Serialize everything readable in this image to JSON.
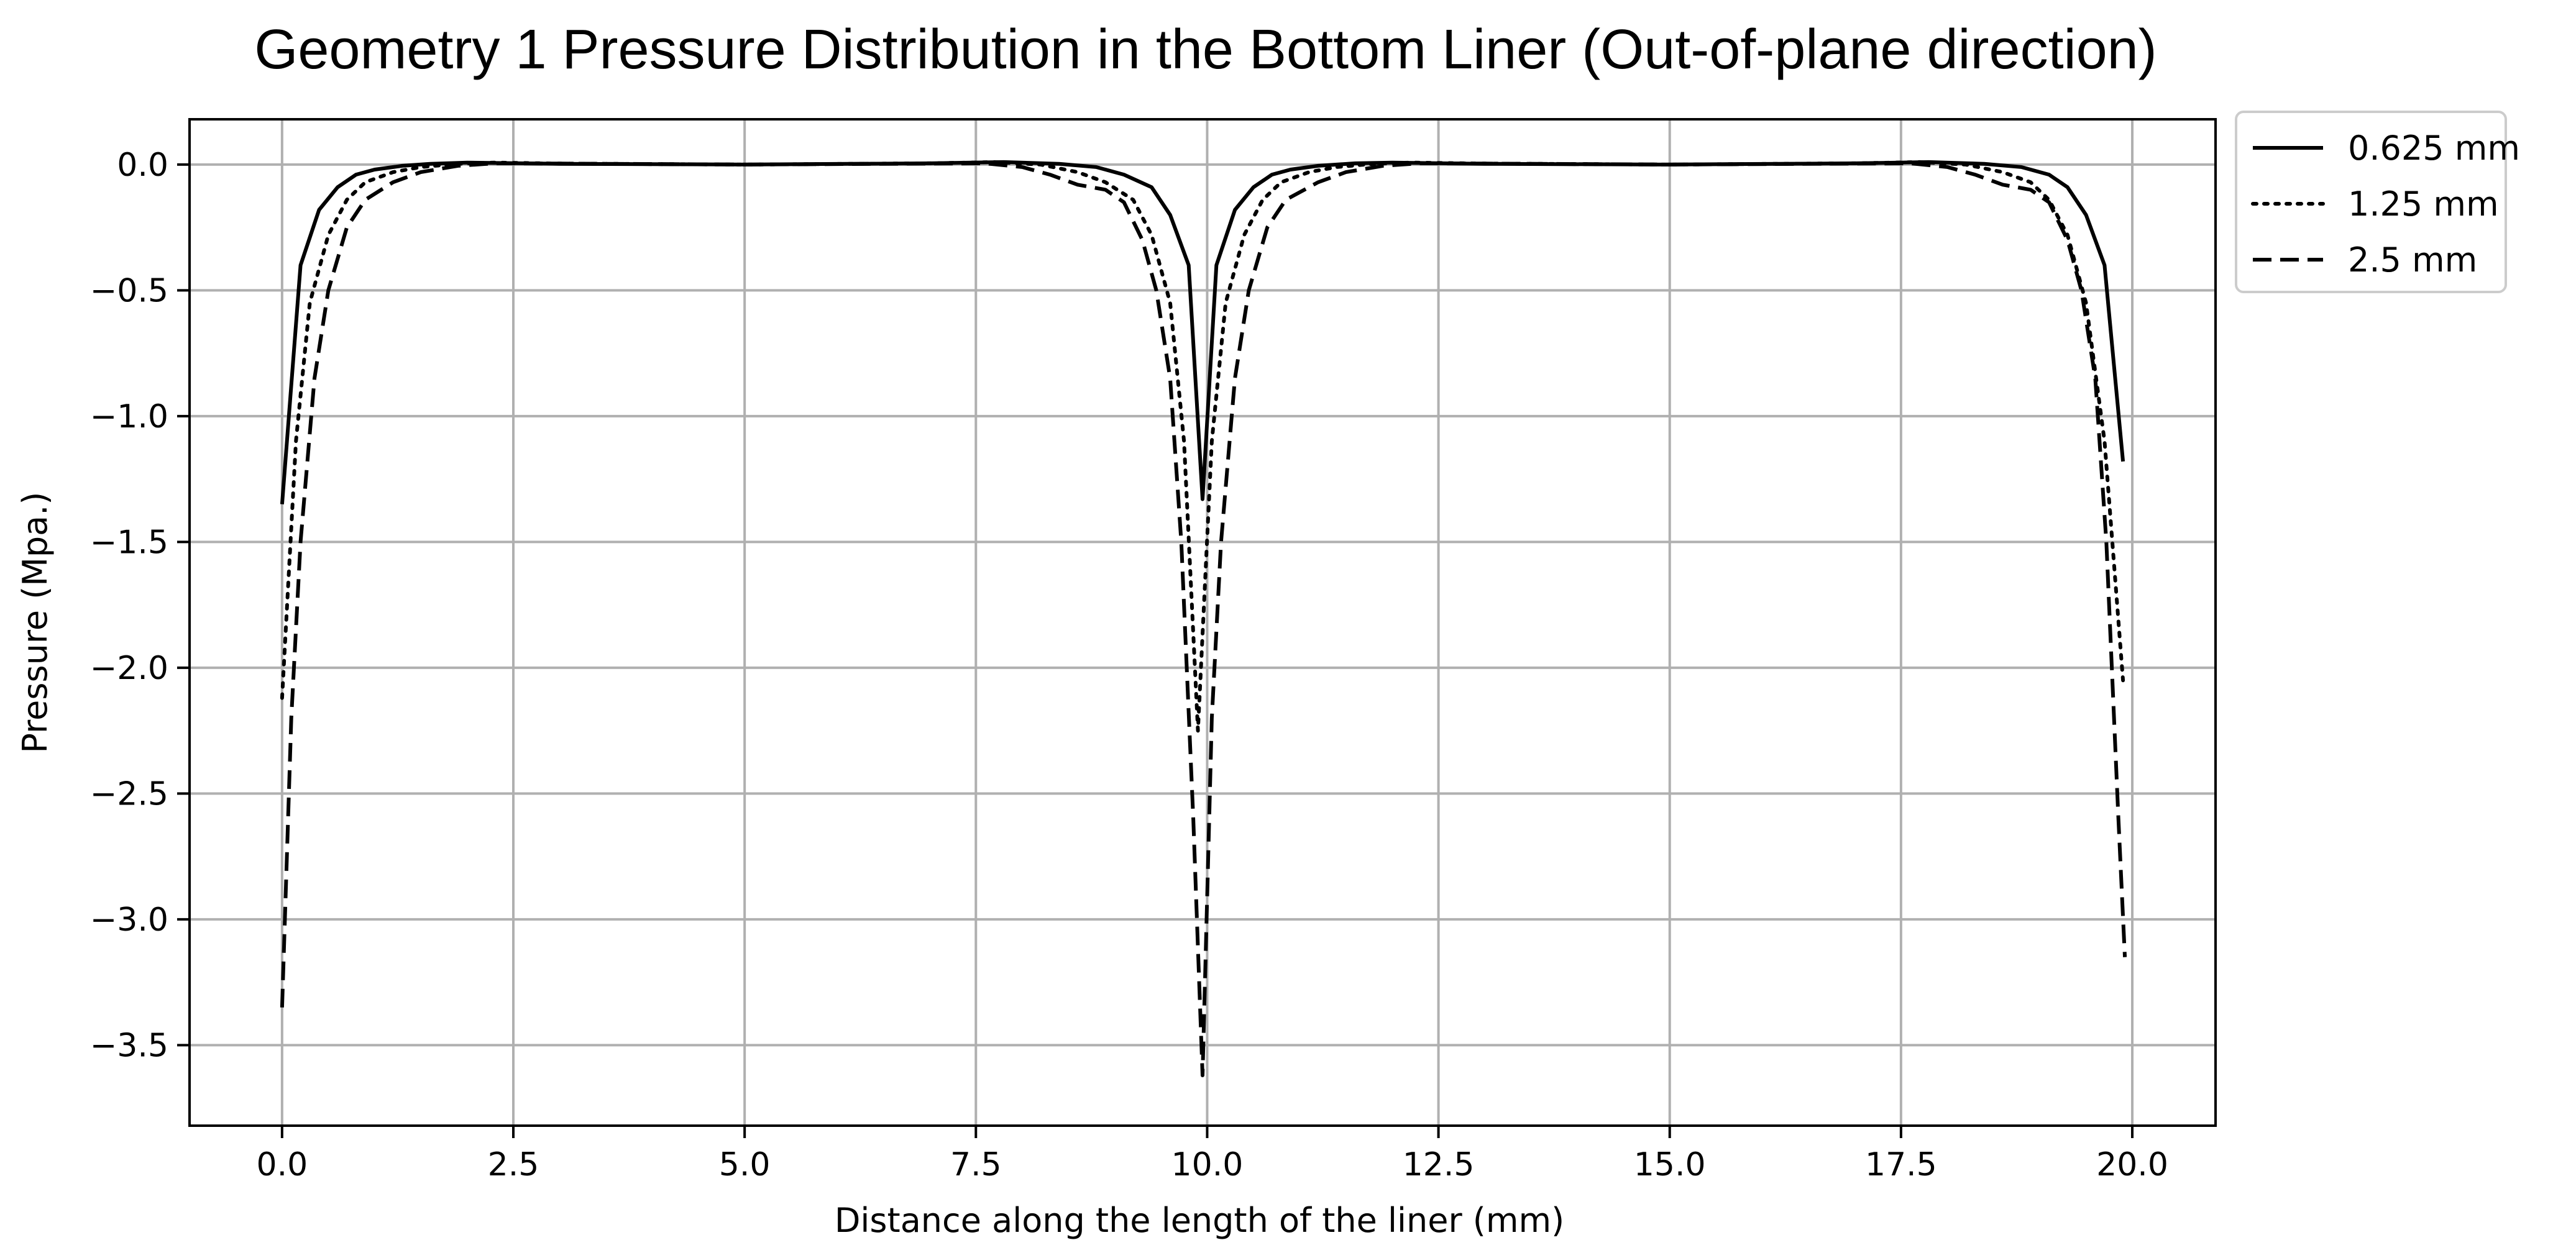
{
  "chart_data": {
    "type": "line",
    "title": "Geometry 1 Pressure Distribution in the Bottom Liner (Out-of-plane direction)",
    "xlabel": "Distance along the length of the liner (mm)",
    "ylabel": "Pressure (Mpa.)",
    "xlim": [
      -1.0,
      20.9
    ],
    "ylim": [
      -3.82,
      0.18
    ],
    "x_ticks": [
      0.0,
      2.5,
      5.0,
      7.5,
      10.0,
      12.5,
      15.0,
      17.5,
      20.0
    ],
    "x_tick_labels": [
      "0.0",
      "2.5",
      "5.0",
      "7.5",
      "10.0",
      "12.5",
      "15.0",
      "17.5",
      "20.0"
    ],
    "y_ticks": [
      0.0,
      -0.5,
      -1.0,
      -1.5,
      -2.0,
      -2.5,
      -3.0,
      -3.5
    ],
    "y_tick_labels": [
      "0.0",
      "−0.5",
      "−1.0",
      "−1.5",
      "−2.0",
      "−2.5",
      "−3.0",
      "−3.5"
    ],
    "grid": true,
    "legend_position": "outside-top-right",
    "series": [
      {
        "name": "0.625 mm",
        "style": "solid",
        "color": "#000000",
        "points": [
          [
            0.0,
            -1.35
          ],
          [
            0.2,
            -0.4
          ],
          [
            0.4,
            -0.18
          ],
          [
            0.6,
            -0.09
          ],
          [
            0.8,
            -0.04
          ],
          [
            1.0,
            -0.02
          ],
          [
            1.3,
            -0.005
          ],
          [
            1.6,
            0.003
          ],
          [
            2.0,
            0.008
          ],
          [
            3.0,
            0.003
          ],
          [
            5.0,
            0.0
          ],
          [
            7.0,
            0.005
          ],
          [
            7.8,
            0.01
          ],
          [
            8.4,
            0.003
          ],
          [
            8.8,
            -0.01
          ],
          [
            9.1,
            -0.04
          ],
          [
            9.4,
            -0.09
          ],
          [
            9.6,
            -0.2
          ],
          [
            9.8,
            -0.4
          ],
          [
            9.95,
            -1.33
          ],
          [
            10.1,
            -0.4
          ],
          [
            10.3,
            -0.18
          ],
          [
            10.5,
            -0.09
          ],
          [
            10.7,
            -0.04
          ],
          [
            10.9,
            -0.02
          ],
          [
            11.2,
            -0.005
          ],
          [
            11.6,
            0.005
          ],
          [
            12.0,
            0.008
          ],
          [
            13.0,
            0.003
          ],
          [
            15.0,
            0.0
          ],
          [
            17.0,
            0.005
          ],
          [
            17.8,
            0.01
          ],
          [
            18.4,
            0.003
          ],
          [
            18.8,
            -0.01
          ],
          [
            19.1,
            -0.04
          ],
          [
            19.3,
            -0.09
          ],
          [
            19.5,
            -0.2
          ],
          [
            19.7,
            -0.4
          ],
          [
            19.9,
            -1.18
          ]
        ]
      },
      {
        "name": "1.25 mm",
        "style": "dotted",
        "color": "#000000",
        "points": [
          [
            0.0,
            -2.12
          ],
          [
            0.15,
            -1.1
          ],
          [
            0.3,
            -0.55
          ],
          [
            0.5,
            -0.28
          ],
          [
            0.7,
            -0.14
          ],
          [
            0.9,
            -0.07
          ],
          [
            1.2,
            -0.03
          ],
          [
            1.5,
            -0.01
          ],
          [
            1.9,
            0.003
          ],
          [
            2.3,
            0.008
          ],
          [
            3.0,
            0.004
          ],
          [
            5.0,
            0.0
          ],
          [
            7.0,
            0.005
          ],
          [
            7.7,
            0.01
          ],
          [
            8.2,
            0.0
          ],
          [
            8.6,
            -0.03
          ],
          [
            8.9,
            -0.07
          ],
          [
            9.2,
            -0.14
          ],
          [
            9.4,
            -0.28
          ],
          [
            9.6,
            -0.55
          ],
          [
            9.75,
            -1.1
          ],
          [
            9.9,
            -2.25
          ],
          [
            10.05,
            -1.1
          ],
          [
            10.2,
            -0.55
          ],
          [
            10.4,
            -0.28
          ],
          [
            10.6,
            -0.14
          ],
          [
            10.8,
            -0.07
          ],
          [
            11.1,
            -0.03
          ],
          [
            11.4,
            -0.01
          ],
          [
            11.8,
            0.003
          ],
          [
            12.2,
            0.008
          ],
          [
            13.0,
            0.004
          ],
          [
            15.0,
            0.0
          ],
          [
            17.0,
            0.005
          ],
          [
            17.7,
            0.01
          ],
          [
            18.2,
            0.0
          ],
          [
            18.6,
            -0.03
          ],
          [
            18.9,
            -0.07
          ],
          [
            19.1,
            -0.14
          ],
          [
            19.3,
            -0.28
          ],
          [
            19.5,
            -0.55
          ],
          [
            19.7,
            -1.1
          ],
          [
            19.9,
            -2.05
          ]
        ]
      },
      {
        "name": "2.5 mm",
        "style": "dashed",
        "color": "#000000",
        "points": [
          [
            0.0,
            -3.35
          ],
          [
            0.1,
            -2.2
          ],
          [
            0.2,
            -1.5
          ],
          [
            0.35,
            -0.85
          ],
          [
            0.5,
            -0.5
          ],
          [
            0.7,
            -0.25
          ],
          [
            0.9,
            -0.14
          ],
          [
            1.2,
            -0.07
          ],
          [
            1.5,
            -0.03
          ],
          [
            1.9,
            -0.005
          ],
          [
            2.3,
            0.005
          ],
          [
            3.0,
            0.004
          ],
          [
            5.0,
            0.0
          ],
          [
            7.0,
            0.004
          ],
          [
            7.6,
            0.005
          ],
          [
            8.0,
            -0.01
          ],
          [
            8.3,
            -0.04
          ],
          [
            8.6,
            -0.08
          ],
          [
            8.9,
            -0.1
          ],
          [
            9.1,
            -0.15
          ],
          [
            9.3,
            -0.3
          ],
          [
            9.45,
            -0.5
          ],
          [
            9.6,
            -0.85
          ],
          [
            9.72,
            -1.5
          ],
          [
            9.85,
            -2.6
          ],
          [
            9.95,
            -3.62
          ],
          [
            10.05,
            -2.2
          ],
          [
            10.15,
            -1.5
          ],
          [
            10.3,
            -0.85
          ],
          [
            10.45,
            -0.5
          ],
          [
            10.65,
            -0.25
          ],
          [
            10.85,
            -0.14
          ],
          [
            11.2,
            -0.07
          ],
          [
            11.5,
            -0.03
          ],
          [
            11.9,
            -0.005
          ],
          [
            12.3,
            0.005
          ],
          [
            13.0,
            0.004
          ],
          [
            15.0,
            0.0
          ],
          [
            17.0,
            0.004
          ],
          [
            17.6,
            0.005
          ],
          [
            18.0,
            -0.01
          ],
          [
            18.3,
            -0.04
          ],
          [
            18.6,
            -0.08
          ],
          [
            18.9,
            -0.1
          ],
          [
            19.1,
            -0.15
          ],
          [
            19.3,
            -0.3
          ],
          [
            19.45,
            -0.5
          ],
          [
            19.6,
            -0.85
          ],
          [
            19.72,
            -1.5
          ],
          [
            19.85,
            -2.6
          ],
          [
            19.92,
            -3.15
          ]
        ]
      }
    ]
  }
}
